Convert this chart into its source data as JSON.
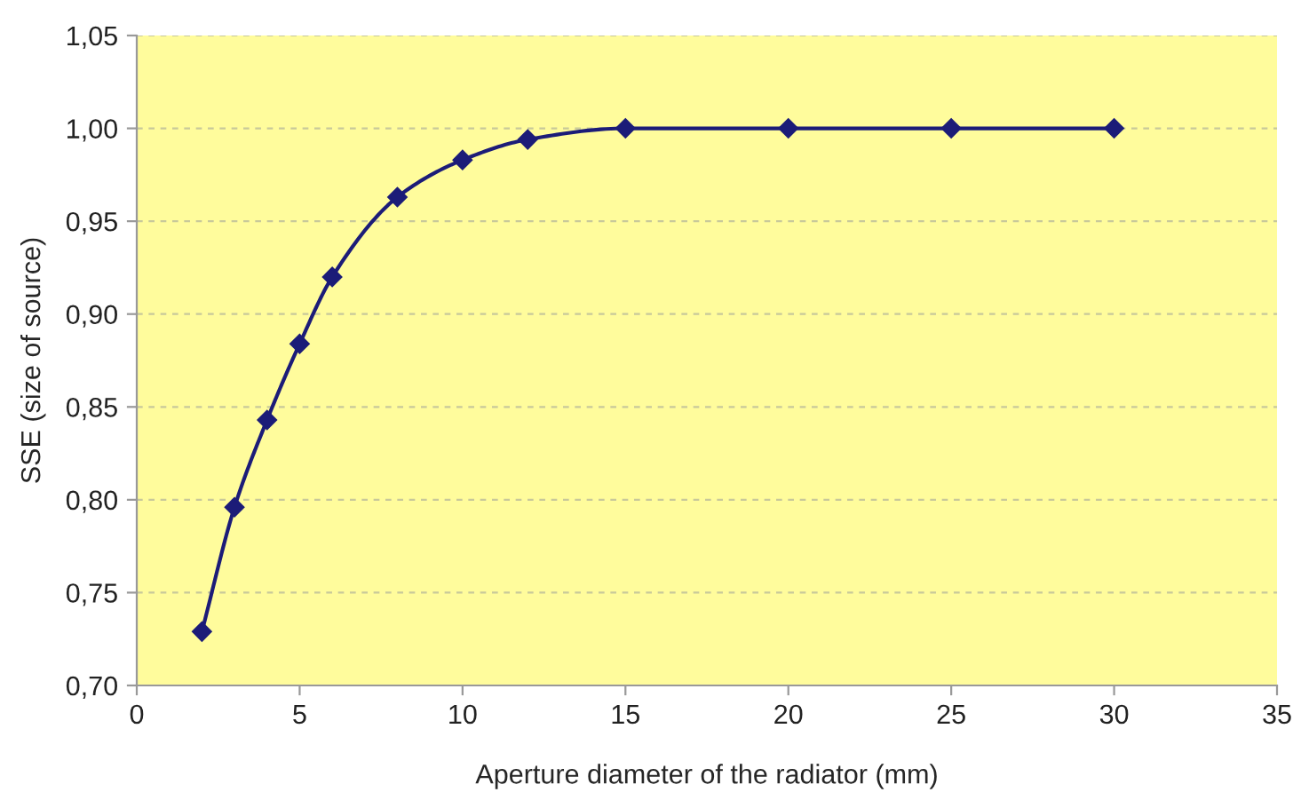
{
  "chart_data": {
    "type": "line",
    "xlabel": "Aperture diameter of the radiator (mm)",
    "ylabel": "SSE (size of source)",
    "x": [
      2,
      3,
      4,
      5,
      6,
      8,
      10,
      12,
      15,
      20,
      25,
      30
    ],
    "series": [
      {
        "color": "#1c1c78",
        "values": [
          0.729,
          0.796,
          0.843,
          0.884,
          0.92,
          0.963,
          0.983,
          0.994,
          1.0,
          1.0,
          1.0,
          1.0
        ]
      }
    ],
    "xlim": [
      0,
      35
    ],
    "xticks": [
      0,
      5,
      10,
      15,
      20,
      25,
      30,
      35
    ],
    "ylim": [
      0.7,
      1.05
    ],
    "yticks": [
      {
        "value": 0.7,
        "label": "0,70"
      },
      {
        "value": 0.75,
        "label": "0,75"
      },
      {
        "value": 0.8,
        "label": "0,80"
      },
      {
        "value": 0.85,
        "label": "0,85"
      },
      {
        "value": 0.9,
        "label": "0,90"
      },
      {
        "value": 0.95,
        "label": "0,95"
      },
      {
        "value": 1.0,
        "label": "1,00"
      },
      {
        "value": 1.05,
        "label": "1,05"
      }
    ],
    "grid": "y",
    "marker": "diamond",
    "line_style": "solid"
  }
}
